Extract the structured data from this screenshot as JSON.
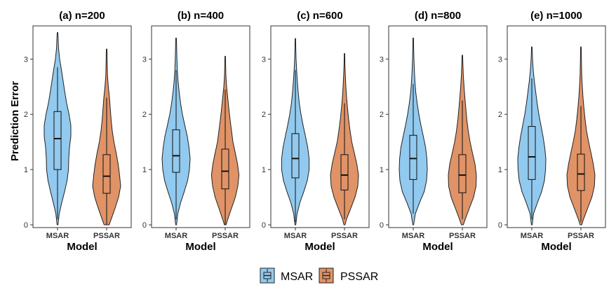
{
  "chart_data": {
    "type": "violin",
    "ylabel": "Prediction Error",
    "xlabel": "Model",
    "ylim": [
      -0.05,
      3.6
    ],
    "yticks": [
      0,
      1,
      2,
      3
    ],
    "categories": [
      "MSAR",
      "PSSAR"
    ],
    "colors": {
      "MSAR": "#92c9ee",
      "PSSAR": "#e09367"
    },
    "legend": [
      "MSAR",
      "PSSAR"
    ],
    "panels": [
      {
        "title": "(a) n=200",
        "series": [
          {
            "name": "MSAR",
            "box": {
              "whisker_low": 0.1,
              "q1": 1.0,
              "median": 1.56,
              "q3": 2.05,
              "whisker_high": 2.85
            },
            "density": [
              [
                0.0,
                0.03
              ],
              [
                0.2,
                0.12
              ],
              [
                0.4,
                0.3
              ],
              [
                0.6,
                0.5
              ],
              [
                0.8,
                0.68
              ],
              [
                1.0,
                0.78
              ],
              [
                1.2,
                0.8
              ],
              [
                1.4,
                0.85
              ],
              [
                1.6,
                0.95
              ],
              [
                1.8,
                0.95
              ],
              [
                2.0,
                0.82
              ],
              [
                2.2,
                0.65
              ],
              [
                2.4,
                0.52
              ],
              [
                2.6,
                0.4
              ],
              [
                2.8,
                0.28
              ],
              [
                3.0,
                0.15
              ],
              [
                3.2,
                0.07
              ],
              [
                3.4,
                0.04
              ],
              [
                3.48,
                0.02
              ]
            ]
          },
          {
            "name": "PSSAR",
            "box": {
              "whisker_low": 0.0,
              "q1": 0.57,
              "median": 0.88,
              "q3": 1.27,
              "whisker_high": 2.3
            },
            "density": [
              [
                0.0,
                0.18
              ],
              [
                0.1,
                0.32
              ],
              [
                0.3,
                0.6
              ],
              [
                0.5,
                0.85
              ],
              [
                0.7,
                1.0
              ],
              [
                0.9,
                0.92
              ],
              [
                1.1,
                0.82
              ],
              [
                1.3,
                0.68
              ],
              [
                1.5,
                0.52
              ],
              [
                1.7,
                0.4
              ],
              [
                1.9,
                0.32
              ],
              [
                2.1,
                0.26
              ],
              [
                2.3,
                0.2
              ],
              [
                2.5,
                0.12
              ],
              [
                2.7,
                0.06
              ],
              [
                2.9,
                0.04
              ],
              [
                3.1,
                0.03
              ],
              [
                3.18,
                0.02
              ]
            ]
          }
        ]
      },
      {
        "title": "(b) n=400",
        "series": [
          {
            "name": "MSAR",
            "box": {
              "whisker_low": 0.1,
              "q1": 0.95,
              "median": 1.25,
              "q3": 1.72,
              "whisker_high": 2.8
            },
            "density": [
              [
                0.0,
                0.03
              ],
              [
                0.2,
                0.12
              ],
              [
                0.4,
                0.32
              ],
              [
                0.6,
                0.58
              ],
              [
                0.8,
                0.82
              ],
              [
                1.0,
                0.95
              ],
              [
                1.2,
                1.0
              ],
              [
                1.4,
                0.92
              ],
              [
                1.6,
                0.8
              ],
              [
                1.8,
                0.62
              ],
              [
                2.0,
                0.45
              ],
              [
                2.2,
                0.32
              ],
              [
                2.4,
                0.22
              ],
              [
                2.6,
                0.14
              ],
              [
                2.8,
                0.09
              ],
              [
                3.0,
                0.06
              ],
              [
                3.2,
                0.04
              ],
              [
                3.38,
                0.02
              ]
            ]
          },
          {
            "name": "PSSAR",
            "box": {
              "whisker_low": 0.0,
              "q1": 0.65,
              "median": 0.97,
              "q3": 1.37,
              "whisker_high": 2.45
            },
            "density": [
              [
                0.0,
                0.06
              ],
              [
                0.1,
                0.18
              ],
              [
                0.3,
                0.45
              ],
              [
                0.5,
                0.72
              ],
              [
                0.7,
                0.9
              ],
              [
                0.9,
                0.98
              ],
              [
                1.1,
                0.88
              ],
              [
                1.3,
                0.72
              ],
              [
                1.5,
                0.55
              ],
              [
                1.7,
                0.45
              ],
              [
                1.9,
                0.35
              ],
              [
                2.1,
                0.26
              ],
              [
                2.3,
                0.18
              ],
              [
                2.5,
                0.1
              ],
              [
                2.7,
                0.05
              ],
              [
                2.9,
                0.03
              ],
              [
                3.05,
                0.02
              ]
            ]
          }
        ]
      },
      {
        "title": "(c) n=600",
        "series": [
          {
            "name": "MSAR",
            "box": {
              "whisker_low": 0.05,
              "q1": 0.85,
              "median": 1.2,
              "q3": 1.65,
              "whisker_high": 2.8
            },
            "density": [
              [
                0.0,
                0.03
              ],
              [
                0.2,
                0.12
              ],
              [
                0.4,
                0.32
              ],
              [
                0.6,
                0.6
              ],
              [
                0.8,
                0.85
              ],
              [
                1.0,
                0.98
              ],
              [
                1.2,
                0.98
              ],
              [
                1.4,
                0.88
              ],
              [
                1.6,
                0.72
              ],
              [
                1.8,
                0.55
              ],
              [
                2.0,
                0.4
              ],
              [
                2.2,
                0.28
              ],
              [
                2.4,
                0.2
              ],
              [
                2.6,
                0.14
              ],
              [
                2.8,
                0.09
              ],
              [
                3.0,
                0.05
              ],
              [
                3.2,
                0.03
              ],
              [
                3.37,
                0.02
              ]
            ]
          },
          {
            "name": "PSSAR",
            "box": {
              "whisker_low": 0.1,
              "q1": 0.63,
              "median": 0.9,
              "q3": 1.27,
              "whisker_high": 2.2
            },
            "density": [
              [
                0.0,
                0.04
              ],
              [
                0.1,
                0.14
              ],
              [
                0.3,
                0.45
              ],
              [
                0.5,
                0.75
              ],
              [
                0.7,
                0.95
              ],
              [
                0.9,
                1.0
              ],
              [
                1.1,
                0.88
              ],
              [
                1.3,
                0.7
              ],
              [
                1.5,
                0.52
              ],
              [
                1.7,
                0.4
              ],
              [
                1.9,
                0.3
              ],
              [
                2.1,
                0.22
              ],
              [
                2.3,
                0.15
              ],
              [
                2.5,
                0.1
              ],
              [
                2.7,
                0.06
              ],
              [
                2.9,
                0.03
              ],
              [
                3.1,
                0.02
              ]
            ]
          }
        ]
      },
      {
        "title": "(d) n=800",
        "series": [
          {
            "name": "MSAR",
            "box": {
              "whisker_low": 0.2,
              "q1": 0.82,
              "median": 1.2,
              "q3": 1.62,
              "whisker_high": 2.55
            },
            "density": [
              [
                0.0,
                0.03
              ],
              [
                0.2,
                0.15
              ],
              [
                0.4,
                0.45
              ],
              [
                0.6,
                0.78
              ],
              [
                0.8,
                0.95
              ],
              [
                1.0,
                1.0
              ],
              [
                1.2,
                0.97
              ],
              [
                1.4,
                0.88
              ],
              [
                1.6,
                0.72
              ],
              [
                1.8,
                0.55
              ],
              [
                2.0,
                0.4
              ],
              [
                2.2,
                0.28
              ],
              [
                2.4,
                0.18
              ],
              [
                2.6,
                0.12
              ],
              [
                2.8,
                0.08
              ],
              [
                3.0,
                0.05
              ],
              [
                3.2,
                0.03
              ],
              [
                3.38,
                0.02
              ]
            ]
          },
          {
            "name": "PSSAR",
            "box": {
              "whisker_low": 0.1,
              "q1": 0.58,
              "median": 0.9,
              "q3": 1.27,
              "whisker_high": 2.25
            },
            "density": [
              [
                0.0,
                0.07
              ],
              [
                0.1,
                0.2
              ],
              [
                0.3,
                0.5
              ],
              [
                0.5,
                0.8
              ],
              [
                0.7,
                0.98
              ],
              [
                0.9,
                1.0
              ],
              [
                1.1,
                0.9
              ],
              [
                1.3,
                0.72
              ],
              [
                1.5,
                0.55
              ],
              [
                1.7,
                0.42
              ],
              [
                1.9,
                0.32
              ],
              [
                2.1,
                0.25
              ],
              [
                2.3,
                0.18
              ],
              [
                2.5,
                0.12
              ],
              [
                2.7,
                0.07
              ],
              [
                2.9,
                0.04
              ],
              [
                3.07,
                0.02
              ]
            ]
          }
        ]
      },
      {
        "title": "(e) n=1000",
        "series": [
          {
            "name": "MSAR",
            "box": {
              "whisker_low": 0.1,
              "q1": 0.82,
              "median": 1.23,
              "q3": 1.78,
              "whisker_high": 2.65
            },
            "density": [
              [
                0.0,
                0.03
              ],
              [
                0.2,
                0.12
              ],
              [
                0.4,
                0.4
              ],
              [
                0.6,
                0.7
              ],
              [
                0.8,
                0.9
              ],
              [
                1.0,
                0.98
              ],
              [
                1.2,
                1.0
              ],
              [
                1.4,
                0.92
              ],
              [
                1.6,
                0.8
              ],
              [
                1.8,
                0.65
              ],
              [
                2.0,
                0.5
              ],
              [
                2.2,
                0.38
              ],
              [
                2.4,
                0.28
              ],
              [
                2.6,
                0.18
              ],
              [
                2.8,
                0.1
              ],
              [
                3.0,
                0.05
              ],
              [
                3.22,
                0.02
              ]
            ]
          },
          {
            "name": "PSSAR",
            "box": {
              "whisker_low": 0.05,
              "q1": 0.62,
              "median": 0.92,
              "q3": 1.28,
              "whisker_high": 2.15
            },
            "density": [
              [
                0.0,
                0.06
              ],
              [
                0.1,
                0.18
              ],
              [
                0.3,
                0.48
              ],
              [
                0.5,
                0.78
              ],
              [
                0.7,
                0.96
              ],
              [
                0.9,
                1.0
              ],
              [
                1.1,
                0.88
              ],
              [
                1.3,
                0.72
              ],
              [
                1.5,
                0.55
              ],
              [
                1.7,
                0.4
              ],
              [
                1.9,
                0.3
              ],
              [
                2.1,
                0.22
              ],
              [
                2.3,
                0.15
              ],
              [
                2.5,
                0.1
              ],
              [
                2.7,
                0.06
              ],
              [
                2.9,
                0.04
              ],
              [
                3.1,
                0.03
              ],
              [
                3.22,
                0.02
              ]
            ]
          }
        ]
      }
    ]
  }
}
